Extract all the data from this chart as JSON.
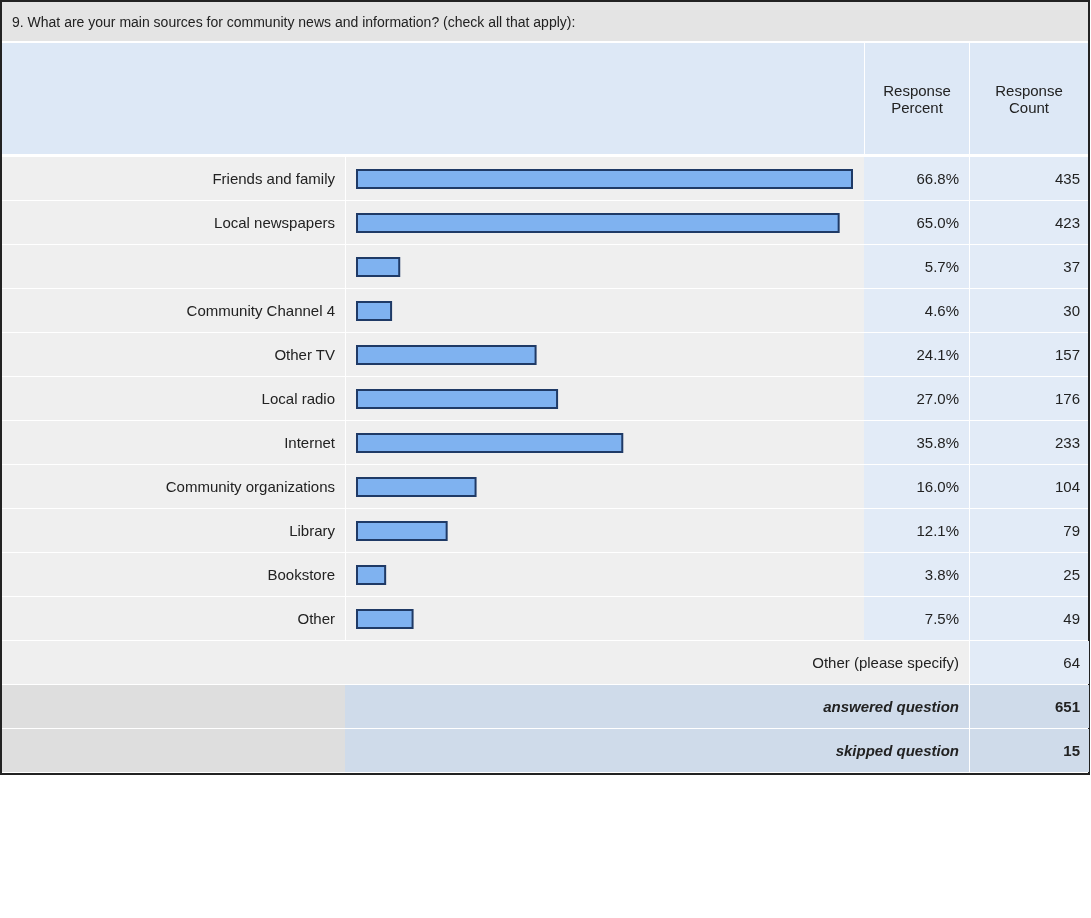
{
  "chart_data": {
    "type": "bar",
    "orientation": "horizontal",
    "title": "9. What are your main sources for community news and information? (check all that apply):",
    "categories": [
      "Friends and family",
      "Local newspapers",
      null,
      "Community Channel 4",
      "Other TV",
      "Local radio",
      "Internet",
      "Community organizations",
      "Library",
      "Bookstore",
      "Other"
    ],
    "series": [
      {
        "name": "Response Percent",
        "color": "#7fb2f0",
        "values": [
          66.8,
          65.0,
          5.7,
          4.6,
          24.1,
          27.0,
          35.8,
          16.0,
          12.1,
          3.8,
          7.5
        ],
        "value_labels": [
          "66.8%",
          "65.0%",
          "5.7%",
          "4.6%",
          "24.1%",
          "27.0%",
          "35.8%",
          "16.0%",
          "12.1%",
          "3.8%",
          "7.5%"
        ]
      }
    ],
    "annotations": [
      "Response Count",
      "435",
      "423",
      "37",
      "30",
      "157",
      "176",
      "233",
      "104",
      "79",
      "25",
      "49",
      "Other (please specify)",
      "64",
      "answered question",
      "651",
      "skipped question",
      "15"
    ]
  }
}
